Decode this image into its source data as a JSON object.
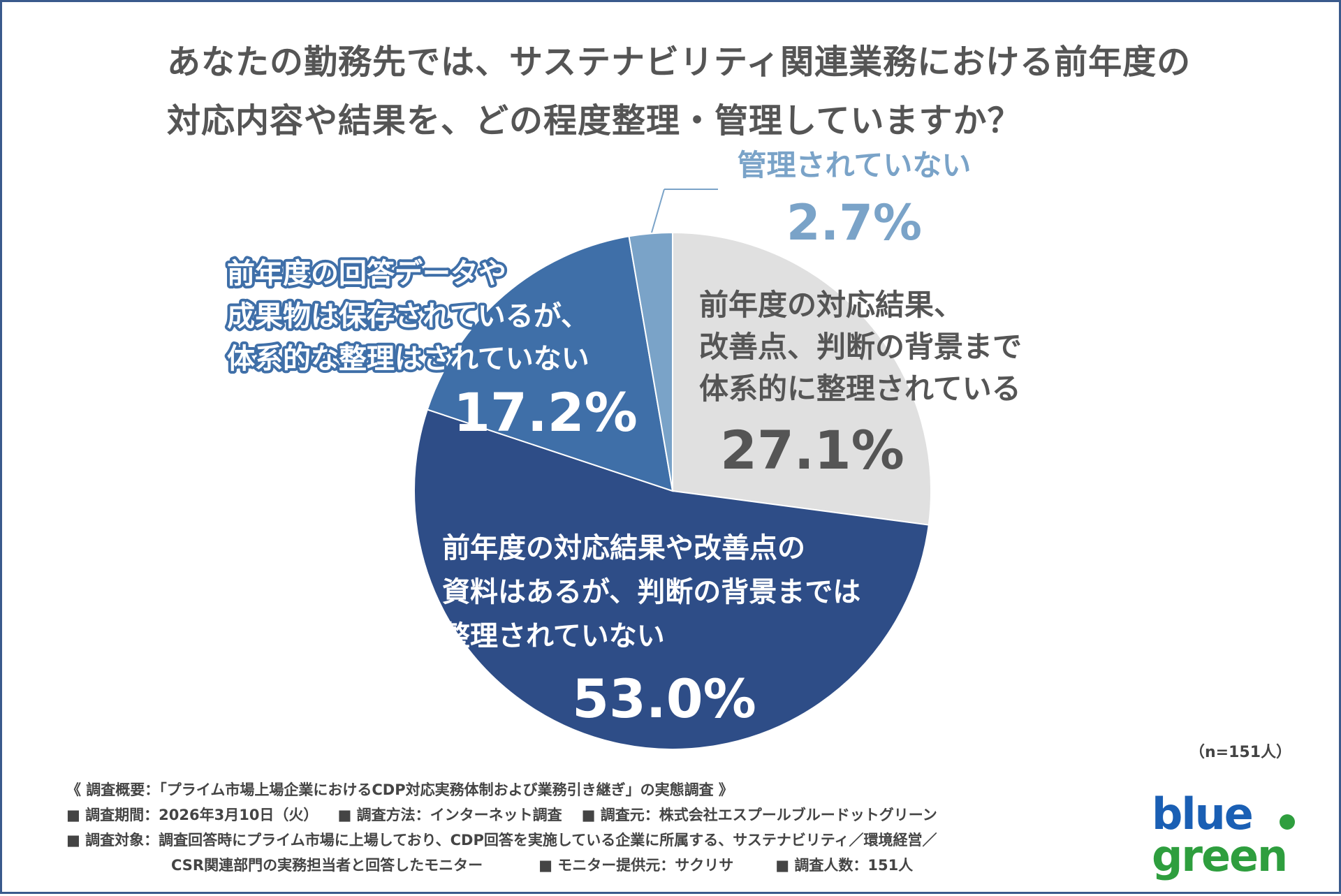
{
  "title_lines": [
    "あなたの勤務先では、サステナビリティ関連業務における前年度の",
    "対応内容や結果を、どの程度整理・管理していますか？"
  ],
  "chart_data": {
    "type": "pie",
    "title": "あなたの勤務先では、サステナビリティ関連業務における前年度の対応内容や結果を、どの程度整理・管理していますか？",
    "unit": "%",
    "slices": [
      {
        "label_lines": [
          "前年度の対応結果、",
          "改善点、判断の背景まで",
          "体系的に整理されている"
        ],
        "value": 27.1,
        "value_label": "27.1%",
        "color": "#e0e0e0",
        "label_color": "#555555"
      },
      {
        "label_lines": [
          "前年度の対応結果や改善点の",
          "資料はあるが、判断の背景までは",
          "整理されていない"
        ],
        "value": 53.0,
        "value_label": "53.0%",
        "color": "#2e4d87",
        "label_color": "#ffffff"
      },
      {
        "label_lines": [
          "前年度の回答データや",
          "成果物は保存されているが、",
          "体系的な整理はされていない"
        ],
        "value": 17.2,
        "value_label": "17.2%",
        "color": "#3f6fa8",
        "label_color": "#ffffff"
      },
      {
        "label_lines": [
          "管理されていない"
        ],
        "value": 2.7,
        "value_label": "2.7%",
        "color": "#7aa3c8",
        "label_color": "#7aa3c8"
      }
    ],
    "sample_size": "（n=151人）"
  },
  "footer": {
    "summary": "《 調査概要：「プライム市場上場企業におけるCDP対応実務体制および業務引き継ぎ」の実態調査 》",
    "period": "■ 調査期間：2026年3月10日（火）",
    "method": "■ 調査方法：インターネット調査",
    "organizer": "■ 調査元：株式会社エスプールブルードットグリーン",
    "target": "■ 調査対象：調査回答時にプライム市場に上場しており、CDP回答を実施している企業に所属する、サステナビリティ／環境経営／",
    "target_cont": "CSR関連部門の実務担当者と回答したモニター",
    "provider": "■ モニター提供元：サクリサ",
    "count": "■ 調査人数：151人"
  },
  "logo": {
    "line1": "blue",
    "line2": "green",
    "blue_color": "#1a5fb4",
    "green_color": "#2e9e3e"
  }
}
